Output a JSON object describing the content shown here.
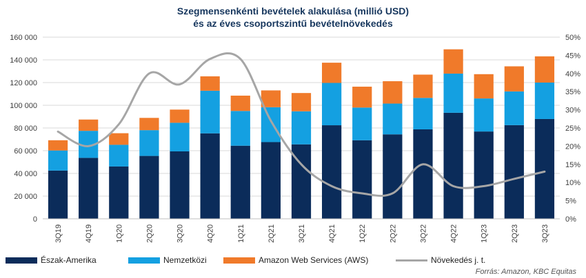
{
  "title_line1": "Szegmensenkénti bevételek alakulása (millió USD)",
  "title_line2": "és az éves csoportszintű bevételnövekedés",
  "source": "Forrás: Amazon, KBC Equitas",
  "chart_data": {
    "type": "bar",
    "stacked": true,
    "categories": [
      "3Q19",
      "4Q19",
      "1Q20",
      "2Q20",
      "3Q20",
      "4Q20",
      "1Q21",
      "2Q21",
      "3Q21",
      "4Q21",
      "1Q22",
      "2Q22",
      "3Q22",
      "4Q22",
      "1Q23",
      "2Q23",
      "3Q23"
    ],
    "series": [
      {
        "name": "Észak-Amerika",
        "color": "#0b2c5a",
        "values": [
          42500,
          53700,
          46100,
          55400,
          59400,
          75300,
          64400,
          67600,
          65600,
          82400,
          69200,
          74400,
          78800,
          93400,
          76900,
          82500,
          87900
        ]
      },
      {
        "name": "Nemzetközi",
        "color": "#14a0e1",
        "values": [
          17700,
          23800,
          19100,
          22700,
          25200,
          37500,
          30600,
          30700,
          29100,
          37300,
          28800,
          27100,
          27700,
          34500,
          29100,
          29700,
          32100
        ]
      },
      {
        "name": "Amazon Web Services (AWS)",
        "color": "#f07a2a",
        "values": [
          9000,
          9950,
          10200,
          10800,
          11600,
          12700,
          13500,
          14800,
          16100,
          17800,
          18400,
          19700,
          20500,
          21400,
          21400,
          22100,
          23100
        ]
      }
    ],
    "line_series": {
      "name": "Növekedés j. t.",
      "color": "#a6a6a6",
      "axis": "right",
      "values": [
        24,
        20,
        26,
        40,
        37,
        44,
        44,
        27,
        15,
        9,
        7,
        7,
        15,
        9,
        9,
        11,
        13
      ]
    },
    "ylim": [
      0,
      160000
    ],
    "yticks": [
      "0",
      "20 000",
      "40 000",
      "60 000",
      "80 000",
      "100 000",
      "120 000",
      "140 000",
      "160 000"
    ],
    "y2lim": [
      0,
      50
    ],
    "y2ticks": [
      "0%",
      "5%",
      "10%",
      "15%",
      "20%",
      "25%",
      "30%",
      "35%",
      "40%",
      "45%",
      "50%"
    ],
    "grid": true,
    "legend_position": "bottom"
  }
}
